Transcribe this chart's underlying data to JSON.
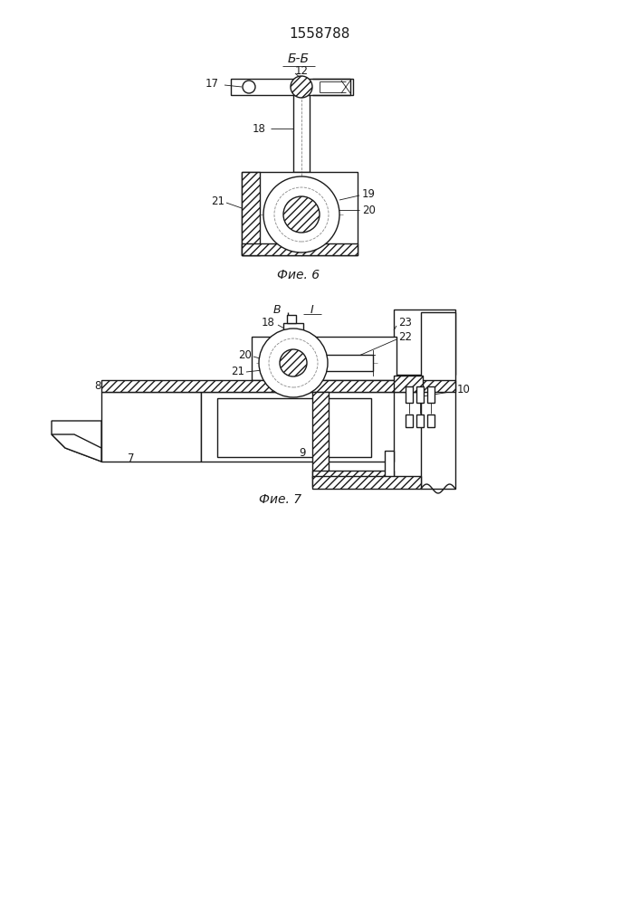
{
  "title": "1558788",
  "bg_color": "#ffffff",
  "line_color": "#1a1a1a",
  "fig6_label": "Фие. 6",
  "fig7_label": "Фие. 7",
  "section_label": "Б-Б"
}
